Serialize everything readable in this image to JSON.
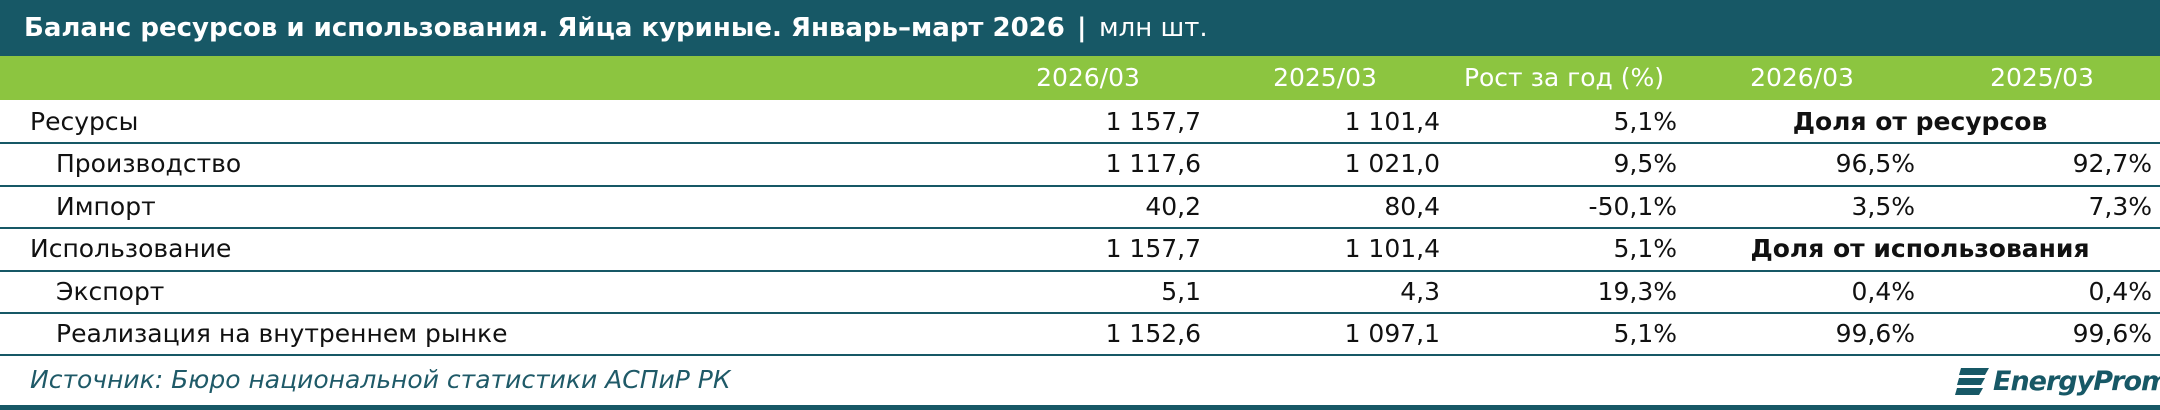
{
  "header": {
    "title": "Баланс ресурсов и использования. Яйца куриные. Январь–март 2026",
    "separator": "|",
    "unit": "млн шт."
  },
  "table": {
    "columns": [
      "2026/03",
      "2025/03",
      "Рост за год (%)",
      "2026/03",
      "2025/03"
    ],
    "rows": [
      {
        "label": "Ресурсы",
        "level": 0,
        "values": [
          "1 157,7",
          "1 101,4",
          "5,1%"
        ],
        "share_title": "Доля от ресурсов"
      },
      {
        "label": "Производство",
        "level": 1,
        "values": [
          "1 117,6",
          "1 021,0",
          "9,5%",
          "96,5%",
          "92,7%"
        ]
      },
      {
        "label": "Импорт",
        "level": 1,
        "values": [
          "40,2",
          "80,4",
          "-50,1%",
          "3,5%",
          "7,3%"
        ]
      },
      {
        "label": "Использование",
        "level": 0,
        "values": [
          "1 157,7",
          "1 101,4",
          "5,1%"
        ],
        "share_title": "Доля от использования"
      },
      {
        "label": "Экспорт",
        "level": 1,
        "values": [
          "5,1",
          "4,3",
          "19,3%",
          "0,4%",
          "0,4%"
        ]
      },
      {
        "label": "Реализация на внутреннем рынке",
        "level": 1,
        "values": [
          "1 152,6",
          "1 097,1",
          "5,1%",
          "99,6%",
          "99,6%"
        ]
      }
    ]
  },
  "footer": {
    "source": "Источник: Бюро национальной статистики АСПиР РК",
    "logo": "EnergyProm"
  }
}
